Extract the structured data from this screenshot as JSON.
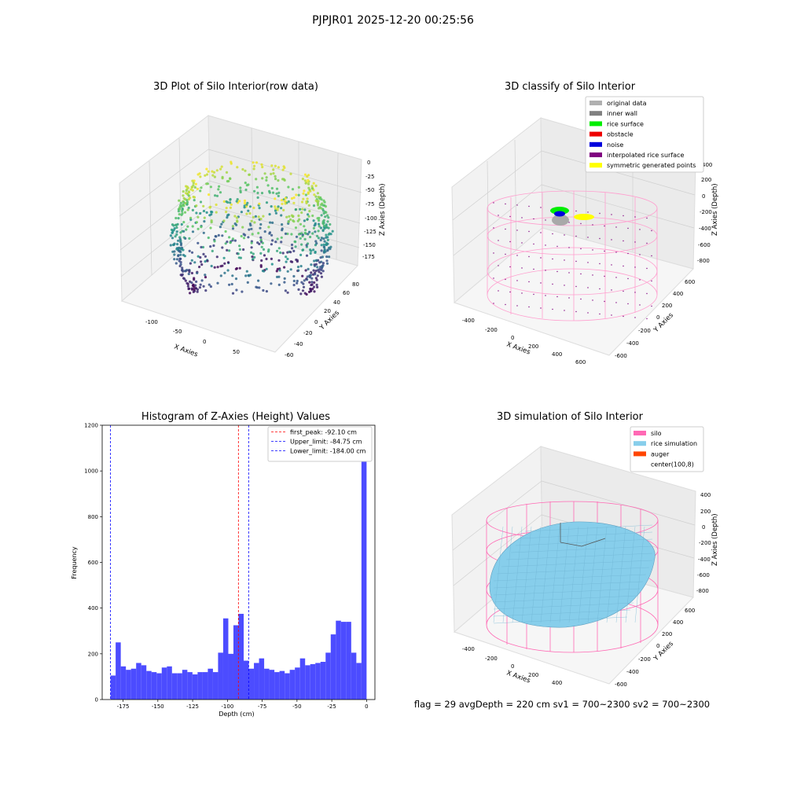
{
  "figure": {
    "suptitle": "PJPJR01 2025-12-20 00:25:56",
    "footer": "flag = 29  avgDepth = 220 cm  sv1 = 700~2300  sv2 = 700~2300"
  },
  "panels": {
    "raw": {
      "title": "3D Plot of Silo Interior(row data)",
      "xlabel": "X Axies",
      "ylabel": "Y Axies",
      "zlabel": "Z Axies (Depth)",
      "xticks": [
        "-100",
        "-50",
        "0",
        "50"
      ],
      "yticks": [
        "-60",
        "-40",
        "-20",
        "0",
        "20",
        "40",
        "60",
        "80"
      ],
      "zticks": [
        "0",
        "-25",
        "-50",
        "-75",
        "-100",
        "-125",
        "-150",
        "-175"
      ]
    },
    "classify": {
      "title": "3D classify of Silo Interior",
      "xlabel": "X Axies",
      "ylabel": "Y Axies",
      "zlabel": "Z Axies (Depth)",
      "xticks": [
        "-400",
        "-200",
        "0",
        "200",
        "400",
        "600"
      ],
      "yticks": [
        "-600",
        "-400",
        "-200",
        "0",
        "200",
        "400",
        "600"
      ],
      "zticks": [
        "400",
        "200",
        "0",
        "-200",
        "-400",
        "-600",
        "-800"
      ],
      "legend": [
        {
          "label": "original data",
          "color": "#b0b0b0"
        },
        {
          "label": "inner wall",
          "color": "#808080"
        },
        {
          "label": "rice surface",
          "color": "#00ee00"
        },
        {
          "label": "obstacle",
          "color": "#ee0000"
        },
        {
          "label": "noise",
          "color": "#0000dd"
        },
        {
          "label": "interpolated rice surface",
          "color": "#800080"
        },
        {
          "label": "symmetric generated points",
          "color": "#ffff00"
        }
      ]
    },
    "simulation": {
      "title": "3D simulation of Silo Interior",
      "xlabel": "X Axies",
      "ylabel": "Y Axies",
      "zlabel": "Z Axies (Depth)",
      "xticks": [
        "-400",
        "-200",
        "0",
        "200",
        "400",
        "600"
      ],
      "yticks": [
        "-600",
        "-400",
        "-200",
        "0",
        "200",
        "400",
        "600"
      ],
      "zticks": [
        "400",
        "200",
        "0",
        "-200",
        "-400",
        "-600",
        "-800"
      ],
      "legend": [
        {
          "label": "silo",
          "color": "#ff69b4"
        },
        {
          "label": "rice simulation",
          "color": "#87ceeb"
        },
        {
          "label": "auger",
          "color": "#ff4500"
        },
        {
          "label": "center(100,8)",
          "color": "#ffffff"
        }
      ]
    }
  },
  "chart_data": {
    "type": "bar",
    "title": "Histogram of Z-Axies (Height) Values",
    "xlabel": "Depth (cm)",
    "ylabel": "Frequency",
    "xlim": [
      -190,
      6
    ],
    "ylim": [
      0,
      1200
    ],
    "xticks": [
      "-175",
      "-150",
      "-125",
      "-100",
      "-75",
      "-50",
      "-25",
      "0"
    ],
    "yticks": [
      "0",
      "200",
      "400",
      "600",
      "800",
      "1000",
      "1200"
    ],
    "bin_start": -184,
    "bin_width": 3.68,
    "bar_color": "#4c4cff",
    "values": [
      105,
      250,
      145,
      130,
      135,
      160,
      150,
      125,
      120,
      115,
      140,
      145,
      115,
      115,
      130,
      120,
      110,
      120,
      120,
      135,
      120,
      205,
      355,
      200,
      325,
      375,
      170,
      135,
      160,
      180,
      135,
      130,
      120,
      125,
      115,
      130,
      140,
      180,
      150,
      155,
      160,
      165,
      205,
      285,
      345,
      340,
      340,
      205,
      160,
      1140
    ],
    "lines": [
      {
        "label": "first_peak: -92.10 cm",
        "x": -92.1,
        "color": "#ff0000"
      },
      {
        "label": "Upper_limit: -84.75 cm",
        "x": -84.75,
        "color": "#0000ff"
      },
      {
        "label": "Lower_limit: -184.00 cm",
        "x": -184.0,
        "color": "#0000ff"
      }
    ]
  }
}
